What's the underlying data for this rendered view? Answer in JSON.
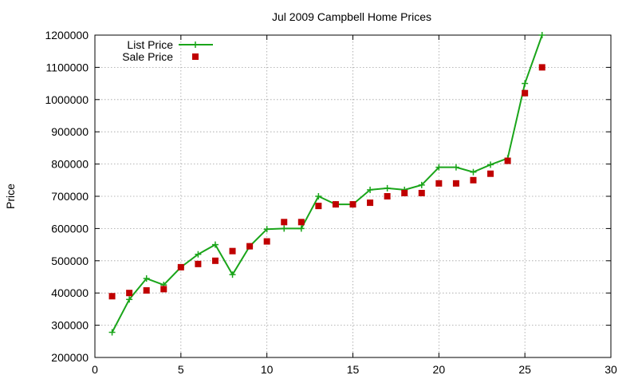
{
  "chart_data": {
    "type": "line",
    "title": "Jul 2009 Campbell Home Prices",
    "xlabel": "",
    "ylabel": "Price",
    "xlim": [
      0,
      30
    ],
    "ylim": [
      200000,
      1200000
    ],
    "xticks": [
      0,
      5,
      10,
      15,
      20,
      25,
      30
    ],
    "yticks": [
      200000,
      300000,
      400000,
      500000,
      600000,
      700000,
      800000,
      900000,
      1000000,
      1100000,
      1200000
    ],
    "grid": true,
    "legend_position": "top-left",
    "series": [
      {
        "name": "List Price",
        "style": "linespoints",
        "marker": "plus",
        "color": "#1aa51a",
        "x": [
          1,
          2,
          3,
          4,
          5,
          6,
          7,
          8,
          9,
          10,
          11,
          12,
          13,
          14,
          15,
          16,
          17,
          18,
          19,
          20,
          21,
          22,
          23,
          24,
          25,
          26
        ],
        "y": [
          278000,
          380000,
          445000,
          425000,
          480000,
          520000,
          550000,
          457000,
          545000,
          598000,
          600000,
          600000,
          700000,
          675000,
          675000,
          720000,
          725000,
          720000,
          735000,
          790000,
          790000,
          775000,
          798000,
          818000,
          1050000,
          1200000
        ]
      },
      {
        "name": "Sale Price",
        "style": "points",
        "marker": "square",
        "color": "#c00000",
        "x": [
          1,
          2,
          3,
          4,
          5,
          6,
          7,
          8,
          9,
          10,
          11,
          12,
          13,
          14,
          15,
          16,
          17,
          18,
          19,
          20,
          21,
          22,
          23,
          24,
          25,
          26
        ],
        "y": [
          390000,
          400000,
          408000,
          412000,
          480000,
          490000,
          500000,
          530000,
          545000,
          560000,
          620000,
          620000,
          670000,
          675000,
          675000,
          680000,
          700000,
          710000,
          710000,
          740000,
          740000,
          750000,
          770000,
          810000,
          1020000,
          1100000
        ]
      }
    ]
  }
}
